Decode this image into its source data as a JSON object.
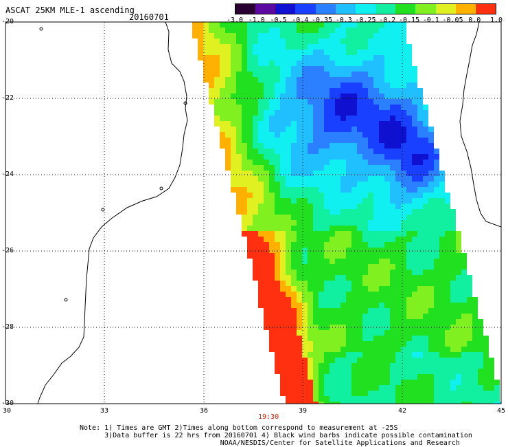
{
  "header": {
    "title": "ASCAT 25KM MLE-1 ascending",
    "date": "20160701"
  },
  "colorbar": {
    "labels": [
      "-3.0",
      "-1.0",
      "-0.5",
      "-0.4",
      "-0.35",
      "-0.3",
      "-0.25",
      "-0.2",
      "-0.15",
      "-0.1",
      "-0.05",
      "0.0",
      "1.0"
    ],
    "colors": [
      "#2a0030",
      "#5a0aa0",
      "#1010d0",
      "#1a40ff",
      "#2a80ff",
      "#20c0ff",
      "#10f0f0",
      "#10f0a0",
      "#20e020",
      "#80f020",
      "#e0f020",
      "#ffb000",
      "#ff3010"
    ]
  },
  "axes": {
    "lat_labels": [
      "-20",
      "-22",
      "-24",
      "-26",
      "-28",
      "-30"
    ],
    "lon_labels": [
      "30",
      "33",
      "36",
      "39",
      "42",
      "45"
    ]
  },
  "time_label": "19:30",
  "notes": [
    "Note: 1) Times are GMT 2)Times along bottom correspond to measurement at -25S",
    "      3)Data buffer is 22 hrs from 20160701 4) Black wind barbs indicate possible contamination",
    "                                  NOAA/NESDIS/Center for Satellite Applications and Research"
  ]
}
